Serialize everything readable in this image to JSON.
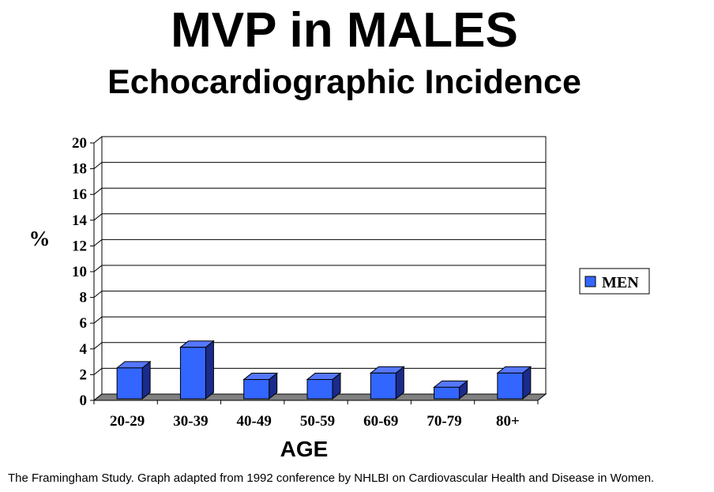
{
  "chart_data": {
    "type": "bar",
    "title": "MVP in MALES",
    "subtitle": "Echocardiographic Incidence",
    "xlabel": "AGE",
    "ylabel": "%",
    "categories": [
      "20-29",
      "30-39",
      "40-49",
      "50-59",
      "60-69",
      "70-79",
      "80+"
    ],
    "series": [
      {
        "name": "MEN",
        "values": [
          2.4,
          4.0,
          1.5,
          1.5,
          2.0,
          0.9,
          2.0
        ]
      }
    ],
    "ylim": [
      0,
      20
    ],
    "yticks": [
      0,
      2,
      4,
      6,
      8,
      10,
      12,
      14,
      16,
      18,
      20
    ],
    "grid": true,
    "legend": "right",
    "bar_color": "#3366ff",
    "bar_side_color": "#1a2b8c",
    "bar_top_color": "#5577ff",
    "floor_color": "#808080"
  },
  "source_note": "The Framingham Study. Graph adapted from 1992 conference by NHLBI on Cardiovascular Health and Disease in Women."
}
